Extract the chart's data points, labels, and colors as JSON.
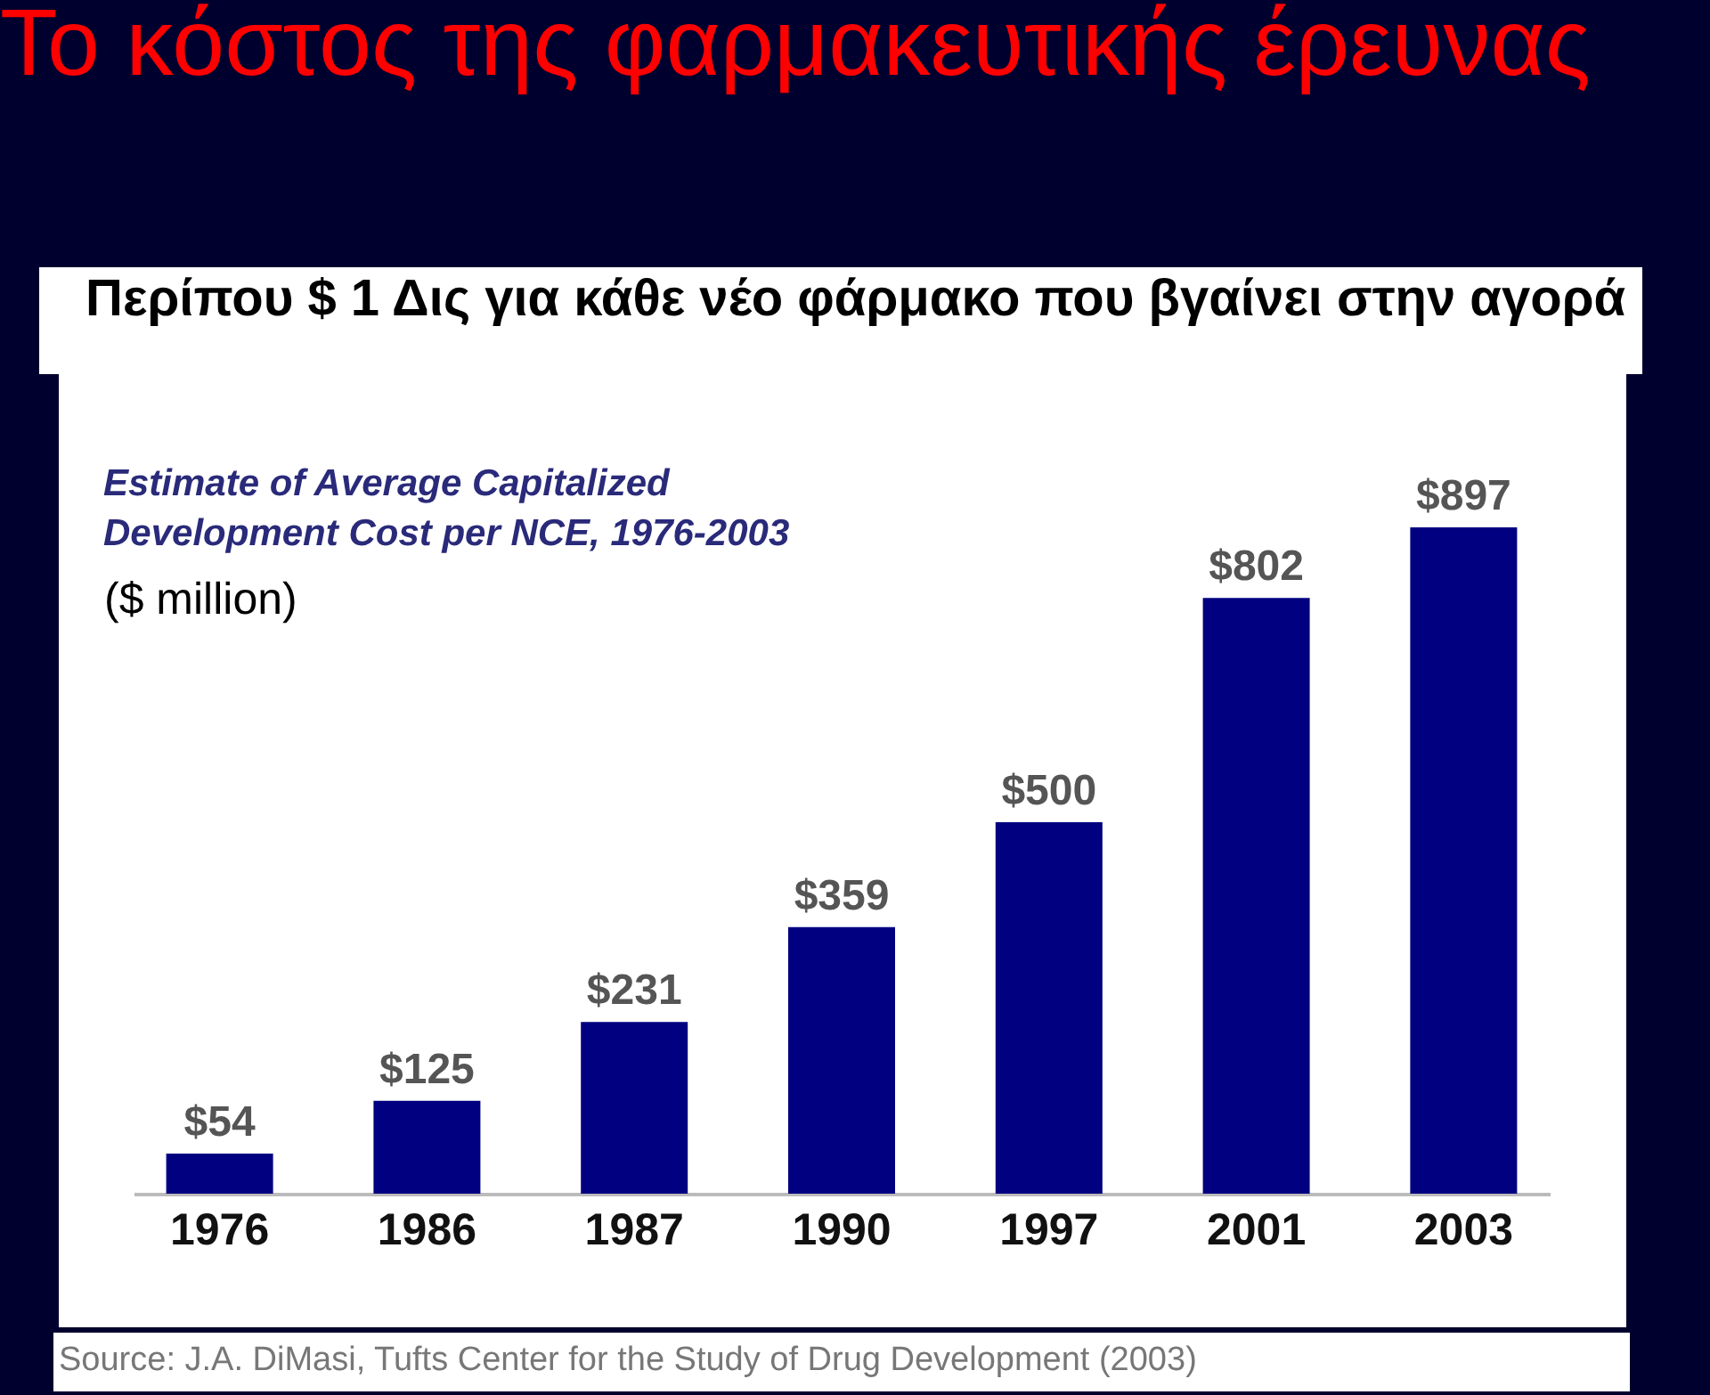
{
  "chart_data": {
    "type": "bar",
    "title": "Το κόστος της φαρμακευτικής έρευνας",
    "subtitle": "Περίπου $ 1 Δις για κάθε νέο φάρμακο που βγαίνει στην αγορά",
    "ylabel": "($ million)",
    "annotations": [
      "Estimate of Average Capitalized\nDevelopment Cost per NCE, 1976-2003",
      "Source: J.A. DiMasi, Tufts Center for the Study of Drug Development (2003)"
    ],
    "categories": [
      "1976",
      "1986",
      "1987",
      "1990",
      "1997",
      "2001",
      "2003"
    ],
    "values": [
      54,
      125,
      231,
      359,
      500,
      802,
      897
    ],
    "value_labels": [
      "$54",
      "$125",
      "$231",
      "$359",
      "$500",
      "$802",
      "$897"
    ],
    "color": "#000080",
    "tick_labels": "x"
  }
}
